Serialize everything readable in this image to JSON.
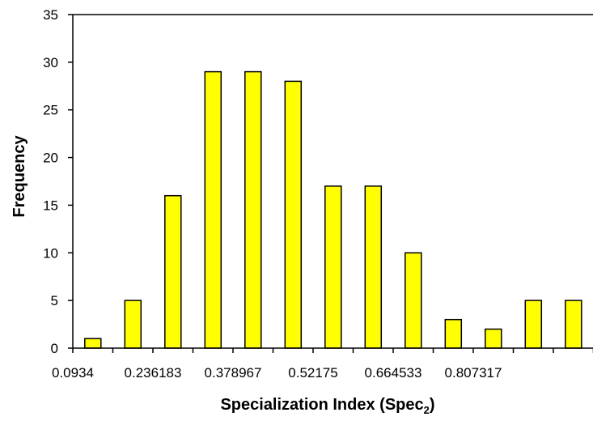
{
  "chart_data": {
    "type": "bar",
    "title": "",
    "xlabel": "Specialization Index (Spec",
    "xlabel_subscript": "2",
    "xlabel_suffix": ")",
    "ylabel": "Frequency",
    "ylim": [
      0,
      35
    ],
    "yticks": [
      0,
      5,
      10,
      15,
      20,
      25,
      30,
      35
    ],
    "x_tick_labels": [
      "0.0934",
      "0.236183",
      "0.378967",
      "0.52175",
      "0.664533",
      "0.807317"
    ],
    "values": [
      1,
      5,
      16,
      29,
      29,
      28,
      17,
      17,
      10,
      3,
      2,
      5,
      5
    ],
    "bar_color": "#ffff00",
    "bar_stroke": "#000000",
    "grid": false,
    "legend": "none"
  }
}
